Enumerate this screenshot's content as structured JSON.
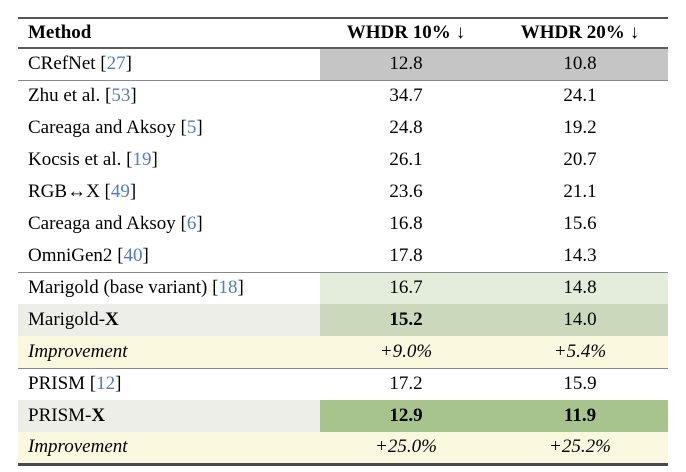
{
  "table": {
    "header": {
      "method": "Method",
      "col1": "WHDR 10%",
      "col2": "WHDR 20%",
      "arrow": "↓"
    },
    "colors": {
      "prior_best_gray": "#c5c5c5",
      "green_light": "#e4ecdb",
      "green_mid": "#ccd8bc",
      "green_dark": "#a8c48d",
      "improvement_yellow": "#fbf8e0",
      "label_gray": "#eeeee9",
      "citation_blue": "#4d7ebf"
    },
    "rows": [
      {
        "name": "CRefNet",
        "bold_suffix": "",
        "bl": " [",
        "cite": "27",
        "br": "]",
        "v1": "12.8",
        "v2": "10.8"
      },
      {
        "name": "Zhu et al.",
        "bold_suffix": "",
        "bl": " [",
        "cite": "53",
        "br": "]",
        "v1": "34.7",
        "v2": "24.1"
      },
      {
        "name": "Careaga and Aksoy",
        "bold_suffix": "",
        "bl": " [",
        "cite": "5",
        "br": "]",
        "v1": "24.8",
        "v2": "19.2"
      },
      {
        "name": "Kocsis et al.",
        "bold_suffix": "",
        "bl": " [",
        "cite": "19",
        "br": "]",
        "v1": "26.1",
        "v2": "20.7"
      },
      {
        "name": "RGB↔X",
        "bold_suffix": "",
        "bl": " [",
        "cite": "49",
        "br": "]",
        "v1": "23.6",
        "v2": "21.1"
      },
      {
        "name": "Careaga and Aksoy",
        "bold_suffix": "",
        "bl": " [",
        "cite": "6",
        "br": "]",
        "v1": "16.8",
        "v2": "15.6"
      },
      {
        "name": "OmniGen2",
        "bold_suffix": "",
        "bl": " [",
        "cite": "40",
        "br": "]",
        "v1": "17.8",
        "v2": "14.3"
      },
      {
        "name": "Marigold (base variant)",
        "bold_suffix": "",
        "bl": " [",
        "cite": "18",
        "br": "]",
        "v1": "16.7",
        "v2": "14.8"
      },
      {
        "name": "Marigold-",
        "bold_suffix": "X",
        "bl": "",
        "cite": "",
        "br": "",
        "v1": "15.2",
        "v2": "14.0"
      },
      {
        "name": "Improvement",
        "bold_suffix": "",
        "bl": "",
        "cite": "",
        "br": "",
        "v1": "+9.0%",
        "v2": "+5.4%"
      },
      {
        "name": "PRISM",
        "bold_suffix": "",
        "bl": " [",
        "cite": "12",
        "br": "]",
        "v1": "17.2",
        "v2": "15.9"
      },
      {
        "name": "PRISM-",
        "bold_suffix": "X",
        "bl": "",
        "cite": "",
        "br": "",
        "v1": "12.9",
        "v2": "11.9"
      },
      {
        "name": "Improvement",
        "bold_suffix": "",
        "bl": "",
        "cite": "",
        "br": "",
        "v1": "+25.0%",
        "v2": "+25.2%"
      }
    ]
  }
}
